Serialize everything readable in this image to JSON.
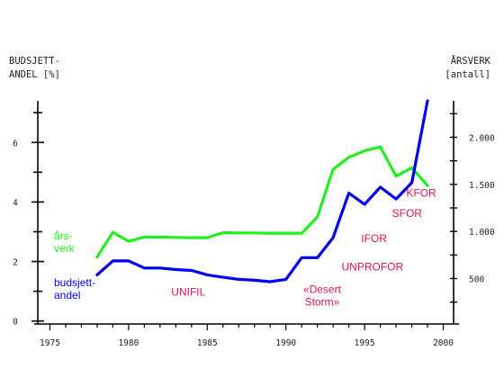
{
  "chart_data": {
    "type": "line",
    "left_axis_title": [
      "BUDSJETT-",
      "ANDEL [%]"
    ],
    "right_axis_title": [
      "ÅRSVERK",
      "[antall]"
    ],
    "x_ticks": [
      1975,
      1980,
      1985,
      1990,
      1995,
      2000
    ],
    "xlim": [
      1974,
      2001
    ],
    "y_left_ticks": [
      0,
      2,
      4,
      6
    ],
    "y_left_range": [
      -0.1,
      7.4
    ],
    "y_right_ticks": [
      "500",
      "1.000",
      "1.500",
      "2.000"
    ],
    "y_right_tick_values": [
      500,
      1000,
      1500,
      2000
    ],
    "series": [
      {
        "name": "budsjett-andel",
        "label_lines": [
          "budsjett-",
          "andel"
        ],
        "color": "#0000ee",
        "axis": "left",
        "x": [
          1978,
          1979,
          1980,
          1981,
          1982,
          1983,
          1984,
          1985,
          1986,
          1987,
          1988,
          1989,
          1990,
          1991,
          1992,
          1993,
          1994,
          1995,
          1996,
          1997,
          1998,
          1999
        ],
        "values": [
          1.55,
          2.02,
          2.02,
          1.78,
          1.78,
          1.73,
          1.7,
          1.55,
          1.47,
          1.4,
          1.37,
          1.32,
          1.4,
          2.13,
          2.13,
          2.8,
          4.3,
          3.92,
          4.5,
          4.1,
          4.65,
          7.4
        ]
      },
      {
        "name": "års-verk",
        "label_lines": [
          "års-",
          "verk"
        ],
        "color": "#22ee22",
        "axis": "left",
        "x": [
          1978,
          1979,
          1980,
          1981,
          1982,
          1983,
          1984,
          1985,
          1986,
          1987,
          1988,
          1989,
          1990,
          1991,
          1992,
          1993,
          1994,
          1995,
          1996,
          1997,
          1998,
          1999
        ],
        "values": [
          2.15,
          2.98,
          2.68,
          2.82,
          2.82,
          2.81,
          2.8,
          2.8,
          2.97,
          2.96,
          2.96,
          2.95,
          2.95,
          2.95,
          3.5,
          5.1,
          5.5,
          5.72,
          5.85,
          4.87,
          5.15,
          4.55
        ]
      }
    ],
    "annotations": [
      {
        "lines": [
          "UNIFIL"
        ],
        "x": 1983.8,
        "y": 0.85
      },
      {
        "lines": [
          "«Desert",
          "Storm»"
        ],
        "x": 1992.3,
        "y": 0.95
      },
      {
        "lines": [
          "UNPROFOR"
        ],
        "x": 1995.5,
        "y": 1.7
      },
      {
        "lines": [
          "IFOR"
        ],
        "x": 1995.6,
        "y": 2.65
      },
      {
        "lines": [
          "SFOR"
        ],
        "x": 1997.7,
        "y": 3.5
      },
      {
        "lines": [
          "KFOR"
        ],
        "x": 1998.6,
        "y": 4.18
      }
    ],
    "annotation_color": "#e0105a",
    "grid": false
  }
}
